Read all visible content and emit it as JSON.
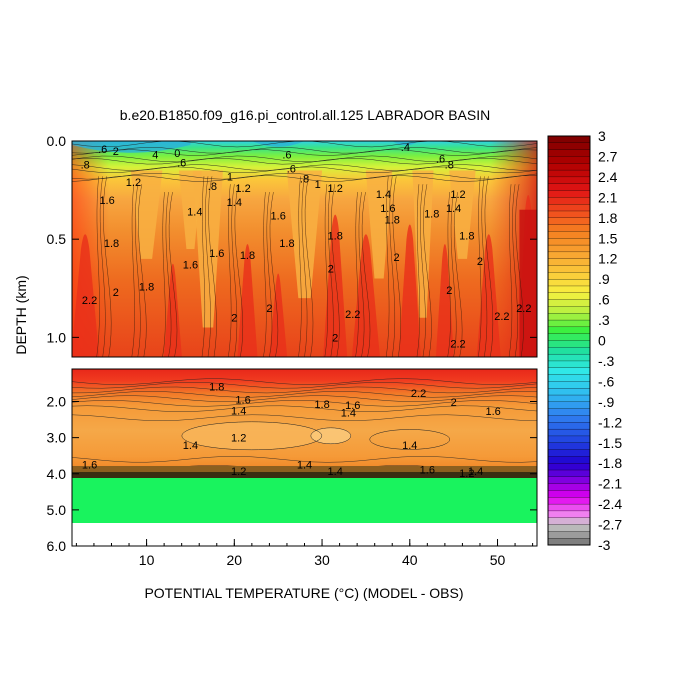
{
  "title": "b.e20.B1850.f09_g16.pi_control.all.125 LABRADOR BASIN",
  "chart_data": {
    "type": "heatmap",
    "title": "b.e20.B1850.f09_g16.pi_control.all.125 LABRADOR BASIN",
    "xlabel": "POTENTIAL TEMPERATURE (°C) (MODEL - OBS)",
    "ylabel": "DEPTH (km)",
    "x_ticks": [
      "10",
      "20",
      "30",
      "40",
      "50"
    ],
    "xlim": [
      1.5,
      54.5
    ],
    "upper_panel": {
      "ylim": [
        0.0,
        1.1
      ],
      "y_ticks": [
        "0.0",
        "0.5",
        "1.0"
      ]
    },
    "lower_panel": {
      "ylim": [
        1.1,
        6.0
      ],
      "y_ticks": [
        "2.0",
        "3.0",
        "4.0",
        "5.0",
        "6.0"
      ]
    },
    "colorbar": {
      "labels": [
        "3",
        "2.7",
        "2.4",
        "2.1",
        "1.8",
        "1.5",
        "1.2",
        ".9",
        ".6",
        ".3",
        "0",
        "-.3",
        "-.6",
        "-.9",
        "-1.2",
        "-1.5",
        "-1.8",
        "-2.1",
        "-2.4",
        "-2.7",
        "-3"
      ],
      "min": -3,
      "max": 3
    },
    "upper_contour_labels": [
      {
        "text": ".6",
        "x": 5.0,
        "depth": 0.04
      },
      {
        "text": "2",
        "x": 6.5,
        "depth": 0.05
      },
      {
        "text": "4",
        "x": 11.0,
        "depth": 0.07
      },
      {
        "text": "0",
        "x": 13.5,
        "depth": 0.06
      },
      {
        "text": ".6",
        "x": 14.0,
        "depth": 0.11
      },
      {
        "text": ".8",
        "x": 3.0,
        "depth": 0.12
      },
      {
        "text": "1.2",
        "x": 8.5,
        "depth": 0.21
      },
      {
        "text": "1.6",
        "x": 5.5,
        "depth": 0.3
      },
      {
        "text": ".8",
        "x": 17.5,
        "depth": 0.23
      },
      {
        "text": "1",
        "x": 19.5,
        "depth": 0.18
      },
      {
        "text": "1.2",
        "x": 21.0,
        "depth": 0.24
      },
      {
        "text": "1.4",
        "x": 20.0,
        "depth": 0.31
      },
      {
        "text": "1.4",
        "x": 15.5,
        "depth": 0.36
      },
      {
        "text": ".6",
        "x": 26.0,
        "depth": 0.07
      },
      {
        "text": ".6",
        "x": 26.5,
        "depth": 0.14
      },
      {
        "text": ".8",
        "x": 28.0,
        "depth": 0.19
      },
      {
        "text": "1",
        "x": 29.5,
        "depth": 0.22
      },
      {
        "text": "1.2",
        "x": 31.5,
        "depth": 0.24
      },
      {
        "text": "1.6",
        "x": 25.0,
        "depth": 0.38
      },
      {
        "text": "1.6",
        "x": 18.0,
        "depth": 0.57
      },
      {
        "text": "1.8",
        "x": 21.5,
        "depth": 0.58
      },
      {
        "text": "1.8",
        "x": 26.0,
        "depth": 0.52
      },
      {
        "text": "1.6",
        "x": 15.0,
        "depth": 0.63
      },
      {
        "text": "1.8",
        "x": 6.0,
        "depth": 0.52
      },
      {
        "text": "1.8",
        "x": 10.0,
        "depth": 0.74
      },
      {
        "text": "2",
        "x": 6.5,
        "depth": 0.77
      },
      {
        "text": "2.2",
        "x": 3.5,
        "depth": 0.81
      },
      {
        "text": "1.4",
        "x": 37.0,
        "depth": 0.27
      },
      {
        "text": "1.6",
        "x": 37.5,
        "depth": 0.34
      },
      {
        "text": "1.8",
        "x": 31.5,
        "depth": 0.48
      },
      {
        "text": "2",
        "x": 31.0,
        "depth": 0.65
      },
      {
        "text": "2",
        "x": 24.0,
        "depth": 0.85
      },
      {
        "text": "2",
        "x": 20.0,
        "depth": 0.9
      },
      {
        "text": "2.2",
        "x": 33.5,
        "depth": 0.88
      },
      {
        "text": "2",
        "x": 31.5,
        "depth": 1.0
      },
      {
        "text": "1.8",
        "x": 38.0,
        "depth": 0.4
      },
      {
        "text": "1.8",
        "x": 42.5,
        "depth": 0.37
      },
      {
        "text": "2",
        "x": 38.5,
        "depth": 0.59
      },
      {
        "text": "2",
        "x": 44.5,
        "depth": 0.76
      },
      {
        "text": "2",
        "x": 48.0,
        "depth": 0.61
      },
      {
        "text": "1.8",
        "x": 46.5,
        "depth": 0.48
      },
      {
        "text": "1.4",
        "x": 45.0,
        "depth": 0.34
      },
      {
        "text": "1.2",
        "x": 45.5,
        "depth": 0.27
      },
      {
        "text": ".6",
        "x": 43.5,
        "depth": 0.09
      },
      {
        "text": ".8",
        "x": 44.5,
        "depth": 0.12
      },
      {
        "text": ".4",
        "x": 39.5,
        "depth": 0.03
      },
      {
        "text": "2.2",
        "x": 45.5,
        "depth": 1.03
      },
      {
        "text": "2.2",
        "x": 50.5,
        "depth": 0.89
      },
      {
        "text": "2.2",
        "x": 53.0,
        "depth": 0.85
      }
    ],
    "lower_contour_labels": [
      {
        "text": "1.8",
        "x": 18.0,
        "depth": 1.58
      },
      {
        "text": "1.6",
        "x": 21.0,
        "depth": 1.95
      },
      {
        "text": "1.4",
        "x": 20.5,
        "depth": 2.25
      },
      {
        "text": "1.2",
        "x": 20.5,
        "depth": 3.0
      },
      {
        "text": "1.4",
        "x": 15.0,
        "depth": 3.2
      },
      {
        "text": "1.8",
        "x": 30.0,
        "depth": 2.07
      },
      {
        "text": "1.6",
        "x": 33.5,
        "depth": 2.1
      },
      {
        "text": "1.4",
        "x": 33.0,
        "depth": 2.3
      },
      {
        "text": "2.2",
        "x": 41.0,
        "depth": 1.77
      },
      {
        "text": "2",
        "x": 45.0,
        "depth": 2.02
      },
      {
        "text": "1.6",
        "x": 49.5,
        "depth": 2.26
      },
      {
        "text": "1.4",
        "x": 40.0,
        "depth": 3.2
      },
      {
        "text": "1.4",
        "x": 28.0,
        "depth": 3.75
      },
      {
        "text": "1.6",
        "x": 3.5,
        "depth": 3.75
      },
      {
        "text": "1.6",
        "x": 42.0,
        "depth": 3.88
      },
      {
        "text": "1.2",
        "x": 20.5,
        "depth": 3.92
      },
      {
        "text": "1.4",
        "x": 31.5,
        "depth": 3.92
      },
      {
        "text": "1.2",
        "x": 46.5,
        "depth": 3.98
      },
      {
        "text": "1.4",
        "x": 47.5,
        "depth": 3.92
      }
    ]
  }
}
